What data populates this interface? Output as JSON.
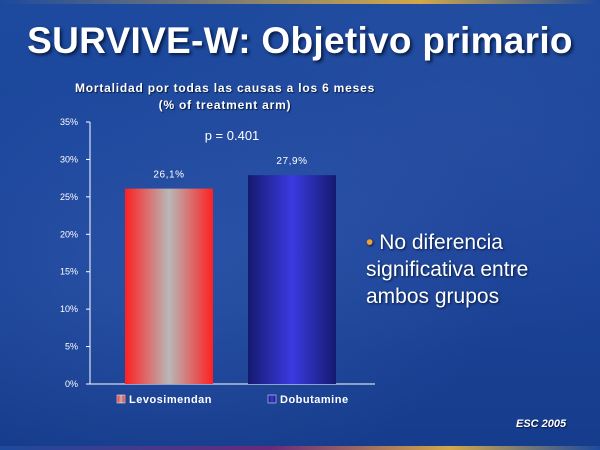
{
  "slide": {
    "title": "SURVIVE-W: Objetivo primario",
    "bullet_marker": "•",
    "bullet_text": "No diferencia significativa entre ambos grupos",
    "footer": "ESC 2005"
  },
  "chart_data": {
    "type": "bar",
    "title": "Mortalidad por todas las causas a los 6 meses  (% of treatment arm)",
    "categories": [
      "Levosimendan",
      "Dobutamine"
    ],
    "values": [
      26.1,
      27.9
    ],
    "data_labels": [
      "26,1%",
      "27,9%"
    ],
    "yticks": [
      "0%",
      "5%",
      "10%",
      "15%",
      "20%",
      "25%",
      "30%",
      "35%"
    ],
    "ylim": [
      0,
      35
    ],
    "annotation": "p = 0.401",
    "legend": [
      "Levosimendan",
      "Dobutamine"
    ],
    "legend_position": "bottom",
    "grid": false,
    "colors": {
      "levosimendan_edge": "#ff2020",
      "levosimendan_center": "#b8b8b8",
      "dobutamine_edge": "#141a6e",
      "dobutamine_center": "#3a3ae0",
      "axis": "#ffffff"
    }
  }
}
